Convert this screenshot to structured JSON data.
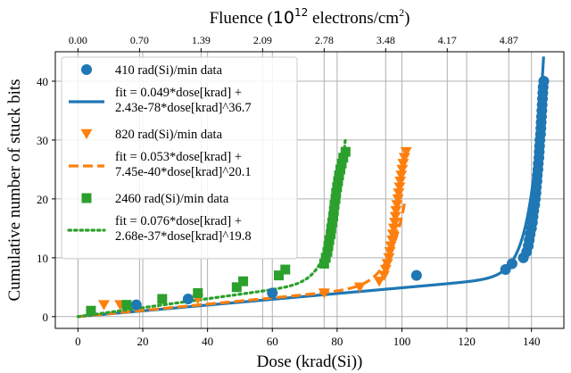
{
  "chart_data": {
    "type": "scatter",
    "xlabel": "Dose (krad(Si))",
    "ylabel": "Cumulative number of stuck bits",
    "top_xlabel": {
      "main": "Fluence (",
      "mant": "10",
      "exp": "12",
      "mid": " electrons/cm",
      "sq": "2",
      "end": ")"
    },
    "xlim": [
      -7,
      150
    ],
    "ylim": [
      -2,
      45
    ],
    "xticks": [
      0,
      20,
      40,
      60,
      80,
      100,
      120,
      140
    ],
    "yticks": [
      0,
      10,
      20,
      30,
      40
    ],
    "top_ticks": [
      {
        "dose": 0,
        "label": "0.00"
      },
      {
        "dose": 19,
        "label": "0.70"
      },
      {
        "dose": 38,
        "label": "1.39"
      },
      {
        "dose": 57,
        "label": "2.09"
      },
      {
        "dose": 76,
        "label": "2.78"
      },
      {
        "dose": 95,
        "label": "3.48"
      },
      {
        "dose": 114,
        "label": "4.17"
      },
      {
        "dose": 133,
        "label": "4.87"
      }
    ],
    "grid": true,
    "legend_position": "upper-left",
    "series": [
      {
        "name": "410 rad(Si)/min data",
        "kind": "data",
        "marker": "circle",
        "color": "#1f77b4",
        "points": [
          [
            18,
            2
          ],
          [
            34,
            3
          ],
          [
            60,
            4
          ],
          [
            104.5,
            7
          ],
          [
            132,
            8
          ],
          [
            134,
            9
          ],
          [
            137.5,
            10
          ],
          [
            138.5,
            11
          ],
          [
            139,
            12
          ],
          [
            139.3,
            13
          ],
          [
            139.6,
            14
          ],
          [
            140,
            15
          ],
          [
            140.3,
            16
          ],
          [
            140.5,
            17
          ],
          [
            140.7,
            18
          ],
          [
            141,
            19
          ],
          [
            141.2,
            20
          ],
          [
            141.4,
            21
          ],
          [
            141.5,
            22
          ],
          [
            141.7,
            23
          ],
          [
            141.8,
            24
          ],
          [
            142,
            25
          ],
          [
            142.1,
            26
          ],
          [
            142.3,
            27
          ],
          [
            142.4,
            28
          ],
          [
            142.5,
            29
          ],
          [
            142.6,
            30
          ],
          [
            142.8,
            31
          ],
          [
            142.9,
            32
          ],
          [
            143,
            33
          ],
          [
            143.1,
            34
          ],
          [
            143.2,
            35
          ],
          [
            143.3,
            36
          ],
          [
            143.4,
            37
          ],
          [
            143.5,
            38
          ],
          [
            143.6,
            39
          ],
          [
            143.8,
            40
          ]
        ]
      },
      {
        "name": "fit = 0.049*dose[krad] +",
        "name2": "2.43e-78*dose[krad]^36.7",
        "kind": "fit",
        "style": "solid",
        "color": "#1f77b4",
        "a": 0.049,
        "b": 2.43e-78,
        "p": 36.7,
        "xmax": 144.3
      },
      {
        "name": "820 rad(Si)/min data",
        "kind": "data",
        "marker": "triangle-down",
        "color": "#ff7f0e",
        "points": [
          [
            8,
            2
          ],
          [
            13,
            2
          ],
          [
            37,
            3
          ],
          [
            76,
            4
          ],
          [
            87,
            5
          ],
          [
            93,
            6
          ],
          [
            94.5,
            7
          ],
          [
            95,
            8
          ],
          [
            95.5,
            9
          ],
          [
            96,
            10
          ],
          [
            96.3,
            11
          ],
          [
            96.6,
            12
          ],
          [
            97,
            13
          ],
          [
            97.2,
            14
          ],
          [
            97.5,
            15
          ],
          [
            97.8,
            16
          ],
          [
            98,
            17
          ],
          [
            98.2,
            18
          ],
          [
            98.5,
            19
          ],
          [
            98.8,
            20
          ],
          [
            99,
            21
          ],
          [
            99.3,
            22
          ],
          [
            99.5,
            23
          ],
          [
            99.8,
            24
          ],
          [
            100.1,
            25
          ],
          [
            100.4,
            26
          ],
          [
            100.8,
            27
          ],
          [
            101.3,
            28
          ]
        ]
      },
      {
        "name": "fit = 0.053*dose[krad] +",
        "name2": "7.45e-40*dose[krad]^20.1",
        "kind": "fit",
        "style": "dashed",
        "color": "#ff7f0e",
        "a": 0.053,
        "b": 7.45e-40,
        "p": 20.1,
        "xmax": 101.2
      },
      {
        "name": "2460 rad(Si)/min data",
        "kind": "data",
        "marker": "square",
        "color": "#2ca02c",
        "points": [
          [
            4,
            1
          ],
          [
            15,
            2
          ],
          [
            26,
            3
          ],
          [
            37,
            4
          ],
          [
            49,
            5
          ],
          [
            51,
            6
          ],
          [
            62,
            7
          ],
          [
            64,
            8
          ],
          [
            76,
            9
          ],
          [
            76.5,
            10
          ],
          [
            77,
            11
          ],
          [
            77.3,
            12
          ],
          [
            77.6,
            13
          ],
          [
            78,
            14
          ],
          [
            78.2,
            15
          ],
          [
            78.5,
            16
          ],
          [
            78.8,
            17
          ],
          [
            79,
            18
          ],
          [
            79.2,
            19
          ],
          [
            79.5,
            20
          ],
          [
            79.7,
            21
          ],
          [
            80,
            22
          ],
          [
            80.3,
            23
          ],
          [
            80.6,
            24
          ],
          [
            81,
            25
          ],
          [
            81.4,
            26
          ],
          [
            81.9,
            27
          ],
          [
            82.6,
            28
          ]
        ]
      },
      {
        "name": "fit = 0.076*dose[krad] +",
        "name2": "2.68e-37*dose[krad]^19.8",
        "kind": "fit",
        "style": "dotted",
        "color": "#2ca02c",
        "a": 0.076,
        "b": 2.68e-37,
        "p": 19.8,
        "xmax": 82.5
      }
    ]
  }
}
